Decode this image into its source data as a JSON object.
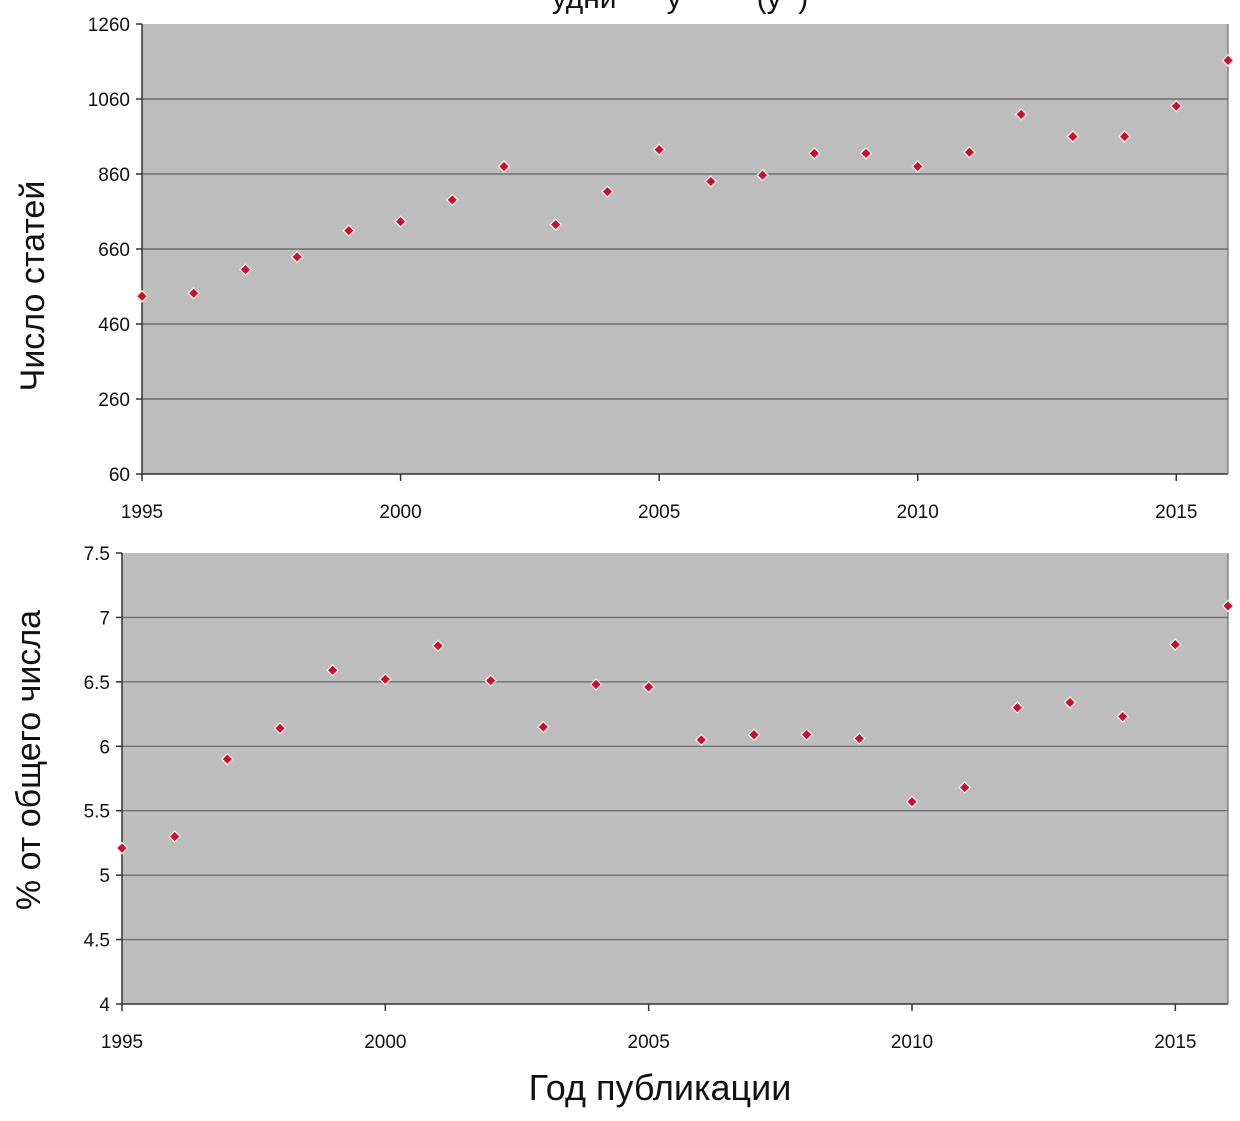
{
  "figure": {
    "cut_title": "удни      у         (у  )",
    "xlabel": "Год публикации"
  },
  "chart_data": [
    {
      "type": "scatter",
      "title": "",
      "xlabel": "",
      "ylabel": "Число статей",
      "xlim": [
        1995,
        2016
      ],
      "ylim": [
        60,
        1260
      ],
      "x_ticks": [
        "1995",
        "2000",
        "2005",
        "2010",
        "2015"
      ],
      "y_ticks": [
        "60",
        "260",
        "460",
        "660",
        "860",
        "1060",
        "1260"
      ],
      "grid": "horizontal",
      "background_color": "#bdbdbd",
      "marker_color": "#c8102e",
      "marker_edge_color": "#e8e8e8",
      "series": [
        {
          "x": [
            1995,
            1996,
            1997,
            1998,
            1999,
            2000,
            2001,
            2002,
            2003,
            2004,
            2005,
            2006,
            2007,
            2008,
            2009,
            2010,
            2011,
            2012,
            2013,
            2014,
            2015,
            2016
          ],
          "y": [
            534,
            542,
            605,
            639,
            709,
            733,
            791,
            880,
            725,
            813,
            925,
            840,
            857,
            915,
            915,
            880,
            918,
            1019,
            960,
            960,
            1041,
            1163
          ]
        }
      ]
    },
    {
      "type": "scatter",
      "title": "",
      "xlabel": "Год публикации",
      "ylabel": "% от общего числа",
      "xlim": [
        1995,
        2016
      ],
      "ylim": [
        4,
        7.5
      ],
      "x_ticks": [
        "1995",
        "2000",
        "2005",
        "2010",
        "2015"
      ],
      "y_ticks": [
        "4",
        "4.5",
        "5",
        "5.5",
        "6",
        "6.5",
        "7",
        "7.5"
      ],
      "grid": "horizontal",
      "background_color": "#bdbdbd",
      "marker_color": "#c8102e",
      "marker_edge_color": "#e8e8e8",
      "series": [
        {
          "x": [
            1995,
            1996,
            1997,
            1998,
            1999,
            2000,
            2001,
            2002,
            2003,
            2004,
            2005,
            2006,
            2007,
            2008,
            2009,
            2010,
            2011,
            2012,
            2013,
            2014,
            2015,
            2016
          ],
          "y": [
            5.21,
            5.3,
            5.9,
            6.14,
            6.59,
            6.52,
            6.78,
            6.51,
            6.15,
            6.48,
            6.46,
            6.05,
            6.09,
            6.09,
            6.06,
            5.57,
            5.68,
            6.3,
            6.34,
            6.23,
            6.79,
            7.09
          ]
        }
      ]
    }
  ]
}
